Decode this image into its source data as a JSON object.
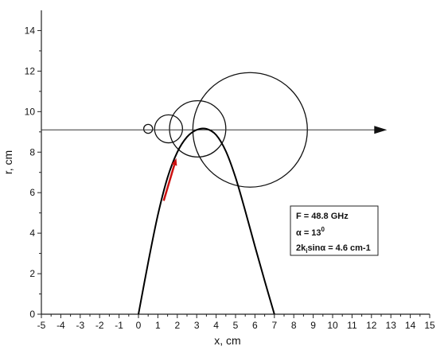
{
  "chart_data": {
    "type": "line",
    "xlabel": "x, cm",
    "ylabel": "r, cm",
    "xlim": [
      -5,
      15
    ],
    "ylim": [
      0,
      15
    ],
    "x_ticks": [
      -5,
      -4,
      -3,
      -2,
      -1,
      0,
      1,
      2,
      3,
      4,
      5,
      6,
      7,
      8,
      9,
      10,
      11,
      12,
      13,
      14,
      15
    ],
    "y_ticks": [
      0,
      2,
      4,
      6,
      8,
      10,
      12,
      14
    ],
    "grid": false,
    "trajectory": {
      "x": [
        0.0,
        0.5,
        1.0,
        1.5,
        2.0,
        2.5,
        3.0,
        3.5,
        4.0,
        4.5,
        5.0,
        5.5,
        6.0,
        6.5,
        7.0
      ],
      "y": [
        0.0,
        2.55,
        4.9,
        6.75,
        8.0,
        8.75,
        9.1,
        9.15,
        8.85,
        8.05,
        6.75,
        5.1,
        3.35,
        1.65,
        0.0
      ],
      "color": "#000000"
    },
    "direction_arrow": {
      "from": [
        1.3,
        5.6
      ],
      "to": [
        1.95,
        7.7
      ],
      "color": "#cc1111"
    },
    "axis_line": {
      "y": 9.1,
      "x_start": -5,
      "x_end": 12.8,
      "color": "#333333"
    },
    "circles": [
      {
        "cx": 0.5,
        "cy": 9.15,
        "r": 0.23
      },
      {
        "cx": 1.55,
        "cy": 9.15,
        "r": 0.72
      },
      {
        "cx": 3.05,
        "cy": 9.15,
        "r": 1.45
      },
      {
        "cx": 5.75,
        "cy": 9.1,
        "r": 2.95
      }
    ],
    "legend_position": "right-middle"
  },
  "legend": {
    "line1": "F = 48.8 GHz",
    "line2_prefix": "α = 13",
    "line2_sup": "0",
    "line3_prefix": "2k",
    "line3_sub": "i",
    "line3_suffix": "sinα = 4.6 cm-1"
  }
}
